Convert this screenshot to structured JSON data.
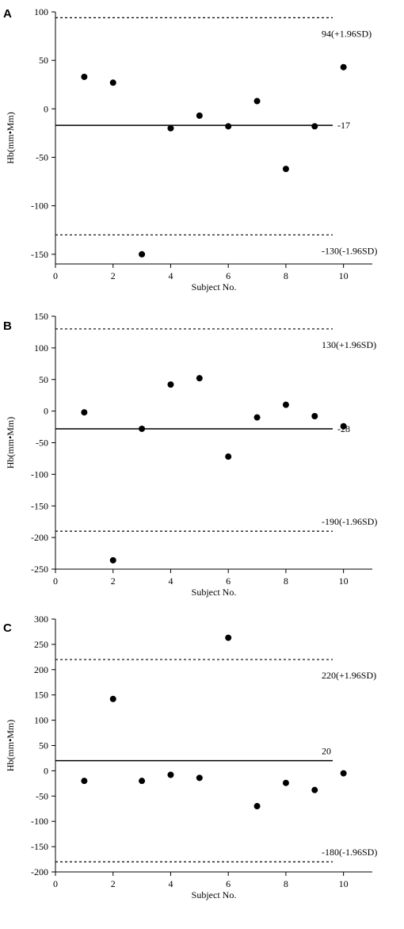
{
  "chart_data": [
    {
      "panel": "A",
      "type": "scatter",
      "xlabel": "Subject No.",
      "ylabel": "Hb(mm•Mm)",
      "xlim": [
        0,
        11
      ],
      "ylim": [
        -160,
        100
      ],
      "xticks": [
        0,
        2,
        4,
        6,
        8,
        10
      ],
      "yticks": [
        100,
        50,
        0,
        -50,
        -100,
        -150
      ],
      "points": [
        {
          "x": 1,
          "y": 33
        },
        {
          "x": 2,
          "y": 27
        },
        {
          "x": 3,
          "y": -150
        },
        {
          "x": 4,
          "y": -20
        },
        {
          "x": 5,
          "y": -7
        },
        {
          "x": 6,
          "y": -18
        },
        {
          "x": 7,
          "y": 8
        },
        {
          "x": 8,
          "y": -62
        },
        {
          "x": 9,
          "y": -18
        },
        {
          "x": 10,
          "y": 43
        }
      ],
      "reference_lines": [
        {
          "value": 94,
          "style": "dashed",
          "label": "94(+1.96SD)",
          "label_placement": "below-right"
        },
        {
          "value": -17,
          "style": "solid",
          "label": "-17",
          "label_placement": "right"
        },
        {
          "value": -130,
          "style": "dashed",
          "label": "-130(-1.96SD)",
          "label_placement": "below-right"
        }
      ]
    },
    {
      "panel": "B",
      "type": "scatter",
      "xlabel": "Subject No.",
      "ylabel": "Hb(mm•Mm)",
      "xlim": [
        0,
        11
      ],
      "ylim": [
        -250,
        150
      ],
      "xticks": [
        0,
        2,
        4,
        6,
        8,
        10
      ],
      "yticks": [
        150,
        100,
        50,
        0,
        -50,
        -100,
        -150,
        -200,
        -250
      ],
      "points": [
        {
          "x": 1,
          "y": -2
        },
        {
          "x": 2,
          "y": -236
        },
        {
          "x": 3,
          "y": -28
        },
        {
          "x": 4,
          "y": 42
        },
        {
          "x": 5,
          "y": 52
        },
        {
          "x": 6,
          "y": -72
        },
        {
          "x": 7,
          "y": -10
        },
        {
          "x": 8,
          "y": 10
        },
        {
          "x": 9,
          "y": -8
        },
        {
          "x": 10,
          "y": -24
        }
      ],
      "reference_lines": [
        {
          "value": 130,
          "style": "dashed",
          "label": "130(+1.96SD)",
          "label_placement": "below-right"
        },
        {
          "value": -28,
          "style": "solid",
          "label": "-28",
          "label_placement": "right"
        },
        {
          "value": -190,
          "style": "dashed",
          "label": "-190(-1.96SD)",
          "label_placement": "above-right"
        }
      ]
    },
    {
      "panel": "C",
      "type": "scatter",
      "xlabel": "Subject No.",
      "ylabel": "Hb(mm•Mm)",
      "xlim": [
        0,
        11
      ],
      "ylim": [
        -200,
        300
      ],
      "xticks": [
        0,
        2,
        4,
        6,
        8,
        10
      ],
      "yticks": [
        300,
        250,
        200,
        150,
        100,
        50,
        0,
        -50,
        -100,
        -150,
        -200
      ],
      "points": [
        {
          "x": 1,
          "y": -20
        },
        {
          "x": 2,
          "y": 142
        },
        {
          "x": 3,
          "y": -20
        },
        {
          "x": 4,
          "y": -8
        },
        {
          "x": 5,
          "y": -14
        },
        {
          "x": 6,
          "y": 263
        },
        {
          "x": 7,
          "y": -70
        },
        {
          "x": 8,
          "y": -24
        },
        {
          "x": 9,
          "y": -38
        },
        {
          "x": 10,
          "y": -5
        }
      ],
      "reference_lines": [
        {
          "value": 220,
          "style": "dashed",
          "label": "220(+1.96SD)",
          "label_placement": "below-right"
        },
        {
          "value": 20,
          "style": "solid",
          "label": "20",
          "label_placement": "above-right"
        },
        {
          "value": -180,
          "style": "dashed",
          "label": "-180(-1.96SD)",
          "label_placement": "above-right"
        }
      ]
    }
  ]
}
